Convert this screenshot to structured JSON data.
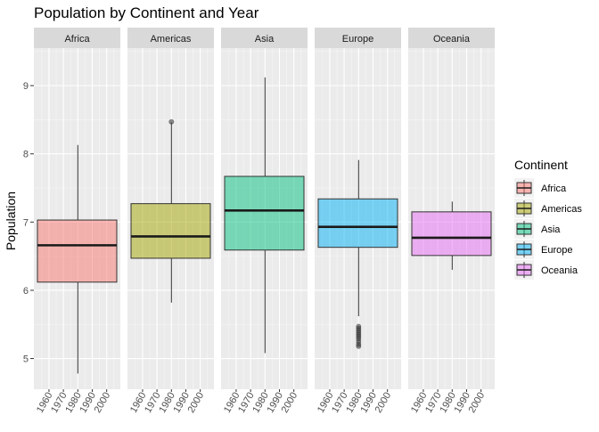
{
  "chart_data": {
    "type": "boxplot",
    "title": "Population by Continent and Year",
    "xlabel": "",
    "ylabel": "Population",
    "ylim": [
      4.55,
      9.55
    ],
    "y_ticks": [
      5,
      6,
      7,
      8,
      9
    ],
    "x_ticks": [
      "1960",
      "1970",
      "1980",
      "1990",
      "2000"
    ],
    "x_range": [
      1952,
      2007
    ],
    "grid": true,
    "legend": {
      "title": "Continent",
      "position": "right",
      "entries": [
        "Africa",
        "Americas",
        "Asia",
        "Europe",
        "Oceania"
      ]
    },
    "panels": [
      {
        "name": "Africa",
        "color": "#F8766D",
        "x": 1980,
        "q1": 6.12,
        "median": 6.66,
        "q3": 7.03,
        "whisker_low": 4.78,
        "whisker_high": 8.13,
        "outliers": []
      },
      {
        "name": "Americas",
        "color": "#A3A500",
        "x": 1980,
        "q1": 6.47,
        "median": 6.79,
        "q3": 7.27,
        "whisker_low": 5.82,
        "whisker_high": 8.46,
        "outliers": [
          8.47
        ]
      },
      {
        "name": "Asia",
        "color": "#00BF7D",
        "x": 1980,
        "q1": 6.59,
        "median": 7.17,
        "q3": 7.67,
        "whisker_low": 5.08,
        "whisker_high": 9.12,
        "outliers": []
      },
      {
        "name": "Europe",
        "color": "#00B0F6",
        "x": 1980,
        "q1": 6.63,
        "median": 6.93,
        "q3": 7.34,
        "whisker_low": 5.62,
        "whisker_high": 7.91,
        "outliers": [
          5.47,
          5.44,
          5.41,
          5.38,
          5.35,
          5.32,
          5.29,
          5.25,
          5.21,
          5.18
        ]
      },
      {
        "name": "Oceania",
        "color": "#E76BF3",
        "x": 1980,
        "q1": 6.51,
        "median": 6.77,
        "q3": 7.15,
        "whisker_low": 6.3,
        "whisker_high": 7.3,
        "outliers": []
      }
    ]
  }
}
